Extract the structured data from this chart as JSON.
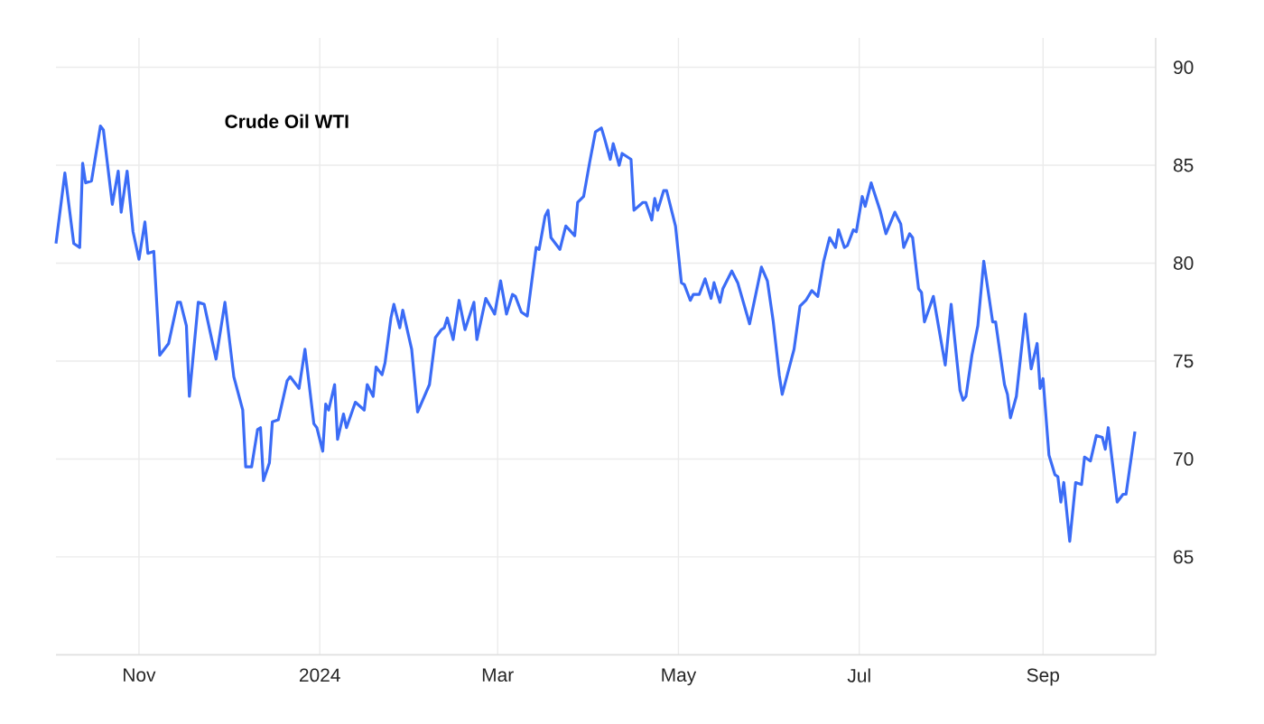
{
  "chart_data": {
    "type": "line",
    "title": "Crude Oil WTI",
    "x": [
      "2023-10-04",
      "2023-10-07",
      "2023-10-10",
      "2023-10-12",
      "2023-10-13",
      "2023-10-14",
      "2023-10-16",
      "2023-10-19",
      "2023-10-20",
      "2023-10-23",
      "2023-10-25",
      "2023-10-26",
      "2023-10-28",
      "2023-10-30",
      "2023-11-01",
      "2023-11-03",
      "2023-11-04",
      "2023-11-06",
      "2023-11-08",
      "2023-11-11",
      "2023-11-14",
      "2023-11-15",
      "2023-11-17",
      "2023-11-18",
      "2023-11-21",
      "2023-11-23",
      "2023-11-27",
      "2023-11-30",
      "2023-12-03",
      "2023-12-06",
      "2023-12-07",
      "2023-12-09",
      "2023-12-11",
      "2023-12-12",
      "2023-12-13",
      "2023-12-15",
      "2023-12-16",
      "2023-12-18",
      "2023-12-21",
      "2023-12-22",
      "2023-12-25",
      "2023-12-27",
      "2023-12-30",
      "2023-12-31",
      "2024-01-02",
      "2024-01-03",
      "2024-01-04",
      "2024-01-06",
      "2024-01-07",
      "2024-01-09",
      "2024-01-10",
      "2024-01-13",
      "2024-01-16",
      "2024-01-17",
      "2024-01-19",
      "2024-01-20",
      "2024-01-22",
      "2024-01-23",
      "2024-01-25",
      "2024-01-26",
      "2024-01-28",
      "2024-01-29",
      "2024-02-01",
      "2024-02-03",
      "2024-02-07",
      "2024-02-09",
      "2024-02-11",
      "2024-02-12",
      "2024-02-13",
      "2024-02-15",
      "2024-02-17",
      "2024-02-19",
      "2024-02-22",
      "2024-02-23",
      "2024-02-26",
      "2024-02-29",
      "2024-03-02",
      "2024-03-04",
      "2024-03-06",
      "2024-03-07",
      "2024-03-09",
      "2024-03-11",
      "2024-03-14",
      "2024-03-15",
      "2024-03-17",
      "2024-03-18",
      "2024-03-19",
      "2024-03-22",
      "2024-03-24",
      "2024-03-27",
      "2024-03-28",
      "2024-03-30",
      "2024-04-01",
      "2024-04-03",
      "2024-04-05",
      "2024-04-06",
      "2024-04-08",
      "2024-04-09",
      "2024-04-11",
      "2024-04-12",
      "2024-04-15",
      "2024-04-16",
      "2024-04-19",
      "2024-04-20",
      "2024-04-22",
      "2024-04-23",
      "2024-04-24",
      "2024-04-26",
      "2024-04-27",
      "2024-04-30",
      "2024-05-02",
      "2024-05-03",
      "2024-05-05",
      "2024-05-06",
      "2024-05-08",
      "2024-05-10",
      "2024-05-12",
      "2024-05-13",
      "2024-05-15",
      "2024-05-16",
      "2024-05-19",
      "2024-05-21",
      "2024-05-25",
      "2024-05-29",
      "2024-05-31",
      "2024-06-02",
      "2024-06-04",
      "2024-06-05",
      "2024-06-09",
      "2024-06-11",
      "2024-06-13",
      "2024-06-15",
      "2024-06-17",
      "2024-06-19",
      "2024-06-21",
      "2024-06-23",
      "2024-06-24",
      "2024-06-26",
      "2024-06-27",
      "2024-06-29",
      "2024-06-30",
      "2024-07-02",
      "2024-07-03",
      "2024-07-05",
      "2024-07-08",
      "2024-07-10",
      "2024-07-13",
      "2024-07-15",
      "2024-07-16",
      "2024-07-18",
      "2024-07-19",
      "2024-07-21",
      "2024-07-22",
      "2024-07-23",
      "2024-07-26",
      "2024-07-30",
      "2024-08-01",
      "2024-08-02",
      "2024-08-04",
      "2024-08-05",
      "2024-08-06",
      "2024-08-08",
      "2024-08-10",
      "2024-08-12",
      "2024-08-15",
      "2024-08-16",
      "2024-08-19",
      "2024-08-20",
      "2024-08-21",
      "2024-08-23",
      "2024-08-26",
      "2024-08-28",
      "2024-08-30",
      "2024-08-31",
      "2024-09-01",
      "2024-09-03",
      "2024-09-05",
      "2024-09-06",
      "2024-09-07",
      "2024-09-08",
      "2024-09-10",
      "2024-09-12",
      "2024-09-14",
      "2024-09-15",
      "2024-09-17",
      "2024-09-19",
      "2024-09-21",
      "2024-09-22",
      "2024-09-23",
      "2024-09-26",
      "2024-09-28",
      "2024-09-29",
      "2024-10-02"
    ],
    "series": [
      {
        "color": "#3b6cf6",
        "values": [
          81.0,
          84.6,
          81.0,
          80.8,
          85.1,
          84.1,
          84.2,
          87.0,
          86.8,
          83.0,
          84.7,
          82.6,
          84.7,
          81.6,
          80.2,
          82.1,
          80.5,
          80.6,
          75.3,
          75.9,
          78.0,
          78.0,
          76.8,
          73.2,
          78.0,
          77.9,
          75.1,
          78.0,
          74.2,
          72.5,
          69.6,
          69.6,
          71.5,
          71.6,
          68.9,
          69.8,
          71.9,
          72.0,
          74.0,
          74.2,
          73.6,
          75.6,
          71.8,
          71.6,
          70.4,
          72.8,
          72.5,
          73.8,
          71.0,
          72.3,
          71.6,
          72.9,
          72.5,
          73.8,
          73.2,
          74.7,
          74.3,
          74.9,
          77.2,
          77.9,
          76.7,
          77.6,
          75.6,
          72.4,
          73.8,
          76.2,
          76.6,
          76.7,
          77.2,
          76.1,
          78.1,
          76.6,
          78.0,
          76.1,
          78.2,
          77.4,
          79.1,
          77.4,
          78.4,
          78.3,
          77.5,
          77.3,
          80.8,
          80.7,
          82.4,
          82.7,
          81.3,
          80.7,
          81.9,
          81.4,
          83.1,
          83.4,
          85.1,
          86.7,
          86.9,
          86.4,
          85.3,
          86.1,
          85.0,
          85.6,
          85.3,
          82.7,
          83.1,
          83.1,
          82.2,
          83.3,
          82.7,
          83.7,
          83.7,
          81.9,
          79.0,
          78.9,
          78.1,
          78.4,
          78.4,
          79.2,
          78.2,
          79.0,
          78.0,
          78.7,
          79.6,
          79.0,
          76.9,
          79.8,
          79.1,
          77.0,
          74.3,
          73.3,
          75.6,
          77.8,
          78.1,
          78.6,
          78.3,
          80.1,
          81.3,
          80.8,
          81.7,
          80.8,
          80.9,
          81.7,
          81.6,
          83.4,
          82.9,
          84.1,
          82.7,
          81.5,
          82.6,
          82.0,
          80.8,
          81.5,
          81.3,
          78.7,
          78.5,
          77.0,
          78.3,
          74.8,
          77.9,
          76.4,
          73.5,
          73.0,
          73.2,
          75.3,
          76.8,
          80.1,
          77.0,
          77.0,
          73.8,
          73.3,
          72.1,
          73.2,
          77.4,
          74.6,
          75.9,
          73.6,
          74.1,
          70.2,
          69.2,
          69.1,
          67.8,
          68.8,
          65.8,
          68.8,
          68.7,
          70.1,
          69.9,
          71.2,
          71.1,
          70.5,
          71.6,
          67.8,
          68.2,
          68.2,
          71.4
        ]
      }
    ],
    "xlim": [
      "2023-10-04",
      "2024-10-09"
    ],
    "xticks": [
      {
        "value": "2023-11-01",
        "label": "Nov"
      },
      {
        "value": "2024-01-01",
        "label": "2024"
      },
      {
        "value": "2024-03-01",
        "label": "Mar"
      },
      {
        "value": "2024-05-01",
        "label": "May"
      },
      {
        "value": "2024-07-01",
        "label": "Jul"
      },
      {
        "value": "2024-09-01",
        "label": "Sep"
      }
    ],
    "ylim": [
      60,
      91.5
    ],
    "yticks": [
      65,
      70,
      75,
      80,
      85,
      90
    ],
    "grid": true
  }
}
